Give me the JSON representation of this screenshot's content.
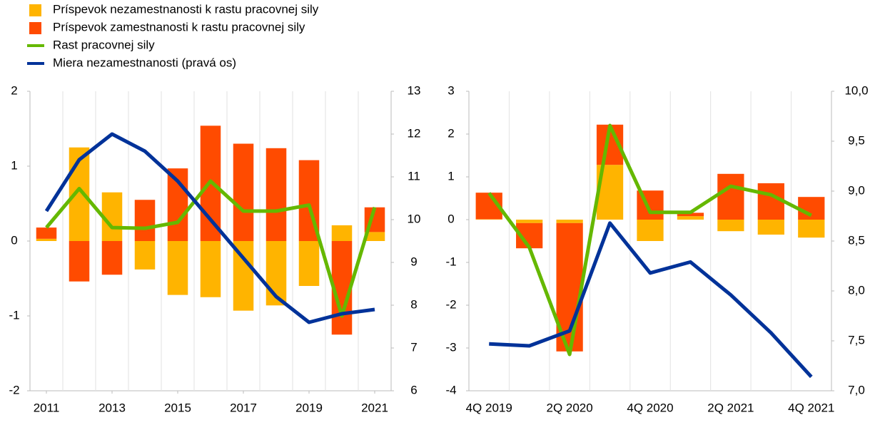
{
  "chart_data": [
    {
      "type": "combo",
      "x": [
        2011,
        2012,
        2013,
        2014,
        2015,
        2016,
        2017,
        2018,
        2019,
        2020,
        2021
      ],
      "xlim": [
        2010.5,
        2021.5
      ],
      "xticks": [
        2011,
        2013,
        2015,
        2017,
        2019,
        2021
      ],
      "ylim": [
        -2,
        2
      ],
      "yticks": [
        -2,
        -1,
        0,
        1,
        2
      ],
      "y2lim": [
        6,
        13
      ],
      "y2ticks": [
        6,
        7,
        8,
        9,
        10,
        11,
        12,
        13
      ],
      "series": [
        {
          "name": "Príspevok nezamestnanosti k rastu pracovnej sily",
          "type": "bar",
          "color": "#ffb400",
          "values": [
            0.03,
            1.25,
            0.65,
            -0.38,
            -0.72,
            -0.75,
            -0.93,
            -0.86,
            -0.6,
            0.21,
            0.12
          ]
        },
        {
          "name": "Príspevok zamestnanosti k rastu pracovnej sily",
          "type": "bar",
          "color": "#ff4b00",
          "values": [
            0.15,
            -0.54,
            -0.45,
            0.55,
            0.97,
            1.54,
            1.3,
            1.24,
            1.08,
            -1.25,
            0.33
          ]
        },
        {
          "name": "Rast pracovnej sily",
          "type": "line",
          "color": "#65b800",
          "values": [
            0.18,
            0.7,
            0.18,
            0.17,
            0.25,
            0.8,
            0.4,
            0.4,
            0.48,
            -1.0,
            0.45
          ]
        },
        {
          "name": "Miera nezamestnanosti (pravá os)",
          "type": "line",
          "color": "#003299",
          "axis": "y2",
          "values": [
            10.2,
            11.4,
            12.0,
            11.6,
            10.9,
            10.0,
            9.1,
            8.2,
            7.6,
            7.8,
            7.9
          ]
        }
      ]
    },
    {
      "type": "combo",
      "categories": [
        "4Q 2019",
        null,
        "2Q 2020",
        null,
        "4Q 2020",
        null,
        "2Q 2021",
        null,
        "4Q 2021"
      ],
      "ylim": [
        -4,
        3
      ],
      "yticks": [
        -4,
        -3,
        -2,
        -1,
        0,
        1,
        2,
        3
      ],
      "y2lim": [
        7,
        10
      ],
      "y2ticks": [
        {
          "value": 7,
          "label": "7,0"
        },
        {
          "value": 7.5,
          "label": "7,5"
        },
        {
          "value": 8,
          "label": "8,0"
        },
        {
          "value": 8.5,
          "label": "8,5"
        },
        {
          "value": 9,
          "label": "9,0"
        },
        {
          "value": 9.5,
          "label": "9,5"
        },
        {
          "value": 10,
          "label": "10,0"
        }
      ],
      "series": [
        {
          "type": "bar",
          "color": "#ffb400",
          "values": [
            0.01,
            -0.08,
            -0.08,
            1.28,
            -0.5,
            0.08,
            -0.27,
            -0.35,
            -0.42
          ]
        },
        {
          "type": "bar",
          "color": "#ff4b00",
          "values": [
            0.62,
            -0.59,
            -3.0,
            0.94,
            0.68,
            0.08,
            1.07,
            0.85,
            0.53
          ]
        },
        {
          "type": "line",
          "color": "#65b800",
          "values": [
            0.62,
            -0.65,
            -3.15,
            2.2,
            0.17,
            0.17,
            0.78,
            0.58,
            0.1
          ]
        },
        {
          "type": "line",
          "color": "#003299",
          "axis": "y2",
          "values": [
            7.47,
            7.45,
            7.6,
            8.68,
            8.18,
            8.29,
            7.96,
            7.58,
            7.14
          ]
        }
      ]
    }
  ]
}
